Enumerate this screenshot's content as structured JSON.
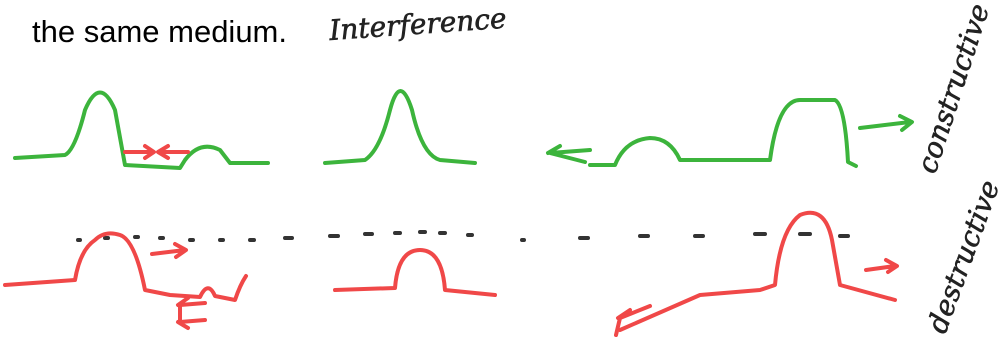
{
  "text": "the same medium.",
  "annotations": {
    "title": "Interference",
    "top_row": "constructive",
    "bottom_row": "destructive"
  }
}
